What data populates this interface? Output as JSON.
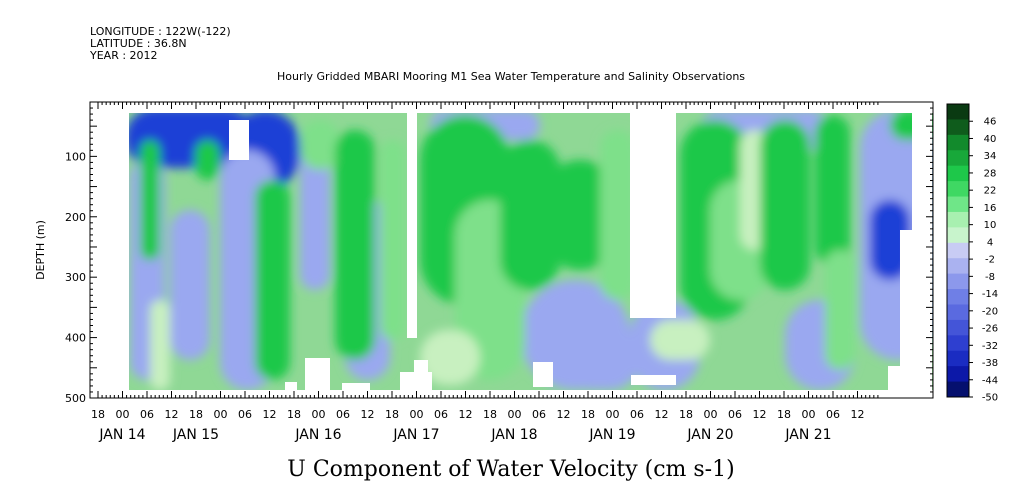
{
  "header": {
    "longitude": "LONGITUDE : 122W(-122)",
    "latitude": "LATITUDE : 36.8N",
    "year": "YEAR : 2012"
  },
  "chart_data": {
    "type": "heatmap",
    "title": "Hourly Gridded MBARI Mooring M1 Sea Water Temperature and Salinity Observations",
    "xlabel": "U Component of Water Velocity (cm s-1)",
    "ylabel": "DEPTH (m)",
    "ylim": [
      500,
      10
    ],
    "y_ticks": [
      "100",
      "200",
      "300",
      "400",
      "500"
    ],
    "x_hour_labels": [
      "18",
      "00",
      "06",
      "12",
      "18",
      "00",
      "06",
      "12",
      "18",
      "00",
      "06",
      "12",
      "18",
      "00",
      "06",
      "12",
      "18",
      "00",
      "06",
      "12",
      "18",
      "00",
      "06",
      "12",
      "18",
      "00",
      "06",
      "12",
      "18",
      "00",
      "06",
      "12"
    ],
    "x_date_labels": [
      "JAN 14",
      "JAN 15",
      "JAN 16",
      "JAN 17",
      "JAN 18",
      "JAN 19",
      "JAN 20",
      "JAN 21"
    ],
    "colorbar_labels": [
      "46",
      "40",
      "34",
      "28",
      "22",
      "16",
      "10",
      "4",
      "-2",
      "-8",
      "-14",
      "-20",
      "-26",
      "-32",
      "-38",
      "-44",
      "-50"
    ],
    "colorbar_range": [
      -50,
      52
    ],
    "colors": {
      "strong_negative": "#1a3fd6",
      "weak_negative": "#9aa8f0",
      "near_zero": "#c8f0c0",
      "weak_positive": "#7ee08a",
      "strong_positive": "#1ec84a",
      "missing": "#ffffff"
    }
  }
}
